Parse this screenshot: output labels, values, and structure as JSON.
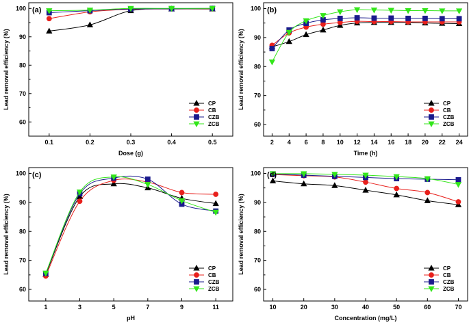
{
  "colors": {
    "CP": "#000000",
    "CB": "#e8201c",
    "CZB": "#1a1a8c",
    "ZCB": "#33e61a"
  },
  "chart_data": [
    {
      "type": "line",
      "panel_label": "(a)",
      "xlabel": "Dose (g)",
      "ylabel": "Lead removal efficiency (%)",
      "x": [
        0.1,
        0.2,
        0.3,
        0.4,
        0.5
      ],
      "xticks": [
        "0.1",
        "0.2",
        "0.3",
        "0.4",
        "0.5"
      ],
      "xlim": [
        0.05,
        0.55
      ],
      "yticks": [
        60,
        70,
        80,
        90,
        100
      ],
      "ylim": [
        55,
        102
      ],
      "legend": "bottom-right",
      "series": [
        {
          "name": "CP",
          "values": [
            92.0,
            94.2,
            99.2,
            99.8,
            99.8
          ]
        },
        {
          "name": "CB",
          "values": [
            96.4,
            98.8,
            99.7,
            99.9,
            99.9
          ]
        },
        {
          "name": "CZB",
          "values": [
            98.5,
            99.2,
            99.8,
            99.9,
            100.0
          ]
        },
        {
          "name": "ZCB",
          "values": [
            99.2,
            99.4,
            100.0,
            100.0,
            100.0
          ]
        }
      ]
    },
    {
      "type": "line",
      "panel_label": "(b)",
      "xlabel": "Time (h)",
      "ylabel": "Lead removal efficiency (%)",
      "x": [
        2,
        4,
        6,
        8,
        10,
        12,
        14,
        16,
        18,
        20,
        22,
        24
      ],
      "xticks": [
        "2",
        "4",
        "6",
        "8",
        "10",
        "12",
        "14",
        "16",
        "18",
        "20",
        "22",
        "24"
      ],
      "xlim": [
        1,
        25
      ],
      "yticks": [
        60,
        70,
        80,
        90,
        100
      ],
      "ylim": [
        56,
        102
      ],
      "legend": "bottom-right",
      "series": [
        {
          "name": "CP",
          "values": [
            86.8,
            88.6,
            91.0,
            92.6,
            94.2,
            95.0,
            95.2,
            95.2,
            95.2,
            95.0,
            94.9,
            94.8
          ]
        },
        {
          "name": "CB",
          "values": [
            87.3,
            91.6,
            93.6,
            94.6,
            95.2,
            95.6,
            95.5,
            95.5,
            95.4,
            95.4,
            95.4,
            95.4
          ]
        },
        {
          "name": "CZB",
          "values": [
            86.2,
            92.6,
            94.9,
            96.1,
            96.6,
            96.8,
            96.7,
            96.7,
            96.6,
            96.6,
            96.5,
            96.5
          ]
        },
        {
          "name": "ZCB",
          "values": [
            81.6,
            91.8,
            95.8,
            97.6,
            98.9,
            99.6,
            99.5,
            99.4,
            99.3,
            99.3,
            99.2,
            99.2
          ]
        }
      ]
    },
    {
      "type": "line",
      "panel_label": "(c)",
      "xlabel": "pH",
      "ylabel": "Lead removal efficiency (%)",
      "x": [
        1,
        3,
        5,
        7,
        9,
        11
      ],
      "xticks": [
        "1",
        "3",
        "5",
        "7",
        "9",
        "11"
      ],
      "xlim": [
        0,
        12
      ],
      "yticks": [
        60,
        70,
        80,
        90,
        100
      ],
      "ylim": [
        56,
        102
      ],
      "legend": "bottom-right",
      "series": [
        {
          "name": "CP",
          "values": [
            65.2,
            92.0,
            96.4,
            95.0,
            91.4,
            89.6
          ]
        },
        {
          "name": "CB",
          "values": [
            64.6,
            90.4,
            97.6,
            97.0,
            93.4,
            92.8
          ]
        },
        {
          "name": "CZB",
          "values": [
            65.5,
            93.0,
            98.4,
            98.0,
            89.4,
            87.0
          ]
        },
        {
          "name": "ZCB",
          "values": [
            65.6,
            93.6,
            98.8,
            96.2,
            90.6,
            86.6
          ]
        }
      ]
    },
    {
      "type": "line",
      "panel_label": "(d)",
      "xlabel": "Concentration (mg/L)",
      "ylabel": "Lead removal efficiency (%)",
      "x": [
        10,
        20,
        30,
        40,
        50,
        60,
        70
      ],
      "xticks": [
        "10",
        "20",
        "30",
        "40",
        "50",
        "60",
        "70"
      ],
      "xlim": [
        7,
        73
      ],
      "yticks": [
        60,
        70,
        80,
        90,
        100
      ],
      "ylim": [
        56,
        102
      ],
      "legend": "bottom-right",
      "series": [
        {
          "name": "CP",
          "values": [
            97.4,
            96.4,
            95.8,
            94.2,
            92.6,
            90.6,
            89.2
          ]
        },
        {
          "name": "CB",
          "values": [
            99.6,
            99.2,
            98.8,
            97.0,
            94.8,
            93.4,
            90.2
          ]
        },
        {
          "name": "CZB",
          "values": [
            99.8,
            99.4,
            99.0,
            98.6,
            98.2,
            98.0,
            97.8
          ]
        },
        {
          "name": "ZCB",
          "values": [
            99.9,
            99.9,
            99.7,
            99.4,
            98.9,
            98.2,
            96.2
          ]
        }
      ]
    }
  ]
}
